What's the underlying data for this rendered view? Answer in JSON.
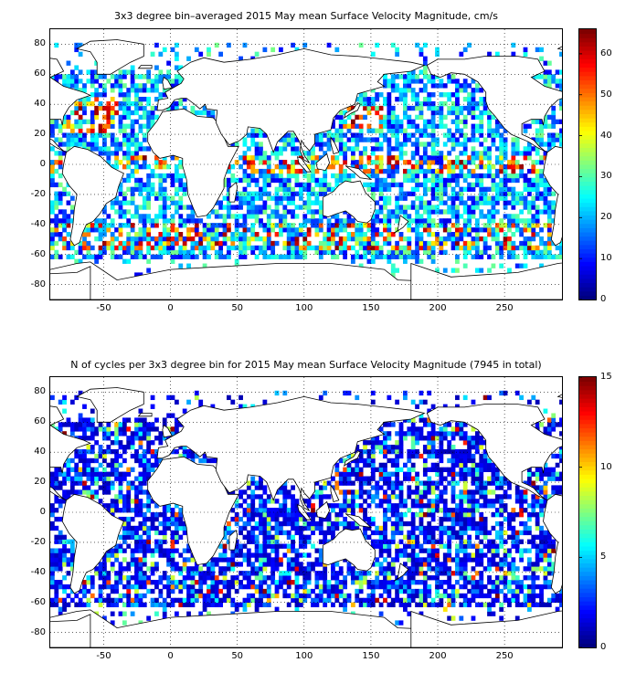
{
  "panels": [
    {
      "title": "3x3 degree bin–averaged 2015 May mean Surface Velocity Magnitude, cm/s",
      "x_ticks": [
        "-50",
        "0",
        "50",
        "100",
        "150",
        "200",
        "250"
      ],
      "y_ticks": [
        "80",
        "60",
        "40",
        "20",
        "0",
        "-20",
        "-40",
        "-60",
        "-80"
      ],
      "colorbar_ticks": [
        "60",
        "50",
        "40",
        "30",
        "20",
        "10",
        "0"
      ],
      "colorbar_range": [
        0,
        66
      ],
      "seed": 17
    },
    {
      "title": "N of cycles per 3x3 degree bin for 2015 May mean Surface Velocity Magnitude (7945 in total)",
      "x_ticks": [
        "-50",
        "0",
        "50",
        "100",
        "150",
        "200",
        "250"
      ],
      "y_ticks": [
        "80",
        "60",
        "40",
        "20",
        "0",
        "-20",
        "-40",
        "-60",
        "-80"
      ],
      "colorbar_ticks": [
        "15",
        "10",
        "5",
        "0"
      ],
      "colorbar_range": [
        0,
        15
      ],
      "seed": 91
    }
  ],
  "colors": {
    "jet": [
      "#00008f",
      "#0000ff",
      "#00ffff",
      "#ffff00",
      "#ff0000",
      "#800000"
    ],
    "land_outline": "#000000",
    "grid": "#000000"
  }
}
